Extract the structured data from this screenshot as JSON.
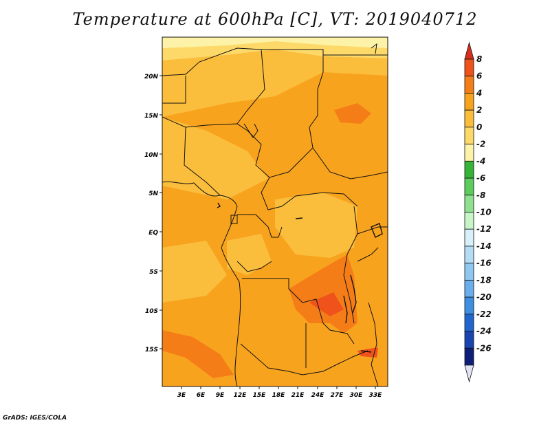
{
  "title": "Temperature at 600hPa [C], VT: 2019040712",
  "credit": "GrADS: IGES/COLA",
  "map": {
    "lat_labels": [
      "20N",
      "15N",
      "10N",
      "5N",
      "EQ",
      "5S",
      "10S",
      "15S"
    ],
    "lon_labels": [
      "3E",
      "6E",
      "9E",
      "12E",
      "15E",
      "18E",
      "21E",
      "24E",
      "27E",
      "30E",
      "33E"
    ]
  },
  "colorbar": {
    "labels": [
      "8",
      "6",
      "4",
      "2",
      "0",
      "-2",
      "-4",
      "-6",
      "-8",
      "-10",
      "-12",
      "-14",
      "-16",
      "-18",
      "-20",
      "-22",
      "-24",
      "-26"
    ],
    "colors": [
      "#d7301f",
      "#f0521c",
      "#f57d18",
      "#f8a31e",
      "#fbbe3c",
      "#fdd969",
      "#fdf3a8",
      "#35b437",
      "#5ccc5c",
      "#8fe08f",
      "#c8f5c8",
      "#d7f0fa",
      "#b4dcf4",
      "#8ec7f0",
      "#6aaeec",
      "#3e8ee2",
      "#2166cf",
      "#1a44b0",
      "#0e1e78",
      "#e3e3f6"
    ]
  }
}
